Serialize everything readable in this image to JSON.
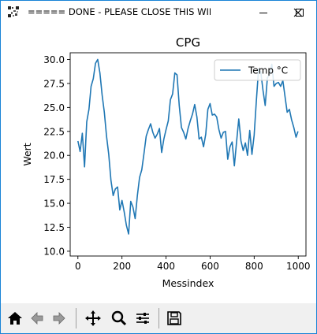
{
  "window": {
    "title": "===== DONE - PLEASE CLOSE THIS WIN...",
    "controls": [
      "minimize-icon",
      "maximize-icon",
      "close-icon"
    ]
  },
  "toolbar": {
    "buttons": [
      "home-icon",
      "back-icon",
      "forward-icon",
      "pan-icon",
      "zoom-icon",
      "subplots-icon",
      "save-icon"
    ]
  },
  "chart_data": {
    "type": "line",
    "title": "CPG",
    "xlabel": "Messindex",
    "ylabel": "Wert",
    "xlim": [
      -35,
      1035
    ],
    "ylim": [
      9.5,
      30.7
    ],
    "xticks": [
      0,
      200,
      400,
      600,
      800,
      1000
    ],
    "xtick_labels": [
      "0",
      "200",
      "400",
      "600",
      "800",
      "1000"
    ],
    "yticks": [
      10.0,
      12.5,
      15.0,
      17.5,
      20.0,
      22.5,
      25.0,
      27.5,
      30.0
    ],
    "ytick_labels": [
      "10.0",
      "12.5",
      "15.0",
      "17.5",
      "20.0",
      "22.5",
      "25.0",
      "27.5",
      "30.0"
    ],
    "legend_position": "top-right",
    "grid": false,
    "series": [
      {
        "name": "Temp °C",
        "color": "#1f77b4",
        "x": [
          0,
          10,
          20,
          30,
          40,
          50,
          60,
          70,
          80,
          90,
          100,
          110,
          120,
          130,
          140,
          150,
          160,
          170,
          180,
          190,
          200,
          210,
          220,
          230,
          240,
          250,
          260,
          270,
          280,
          290,
          300,
          310,
          320,
          330,
          340,
          350,
          360,
          370,
          380,
          390,
          400,
          410,
          420,
          430,
          440,
          450,
          460,
          470,
          480,
          490,
          500,
          510,
          520,
          530,
          540,
          550,
          560,
          570,
          580,
          590,
          600,
          610,
          620,
          630,
          640,
          650,
          660,
          670,
          680,
          690,
          700,
          710,
          720,
          730,
          740,
          750,
          760,
          770,
          780,
          790,
          800,
          810,
          820,
          830,
          840,
          850,
          860,
          870,
          880,
          890,
          900,
          910,
          920,
          930,
          940,
          950,
          960,
          970,
          980,
          990,
          999
        ],
        "y": [
          21.5,
          20.4,
          22.3,
          18.8,
          23.5,
          24.8,
          27.2,
          28.0,
          29.6,
          30.0,
          28.6,
          26.3,
          24.5,
          22.0,
          20.1,
          17.4,
          15.8,
          16.5,
          16.7,
          14.3,
          15.3,
          14.1,
          12.7,
          11.8,
          15.2,
          14.6,
          13.4,
          15.8,
          17.7,
          18.5,
          20.2,
          22.0,
          22.7,
          23.3,
          22.4,
          21.8,
          22.2,
          22.8,
          20.3,
          21.7,
          22.7,
          23.6,
          25.8,
          26.4,
          28.6,
          28.4,
          25.2,
          22.9,
          22.4,
          21.7,
          22.8,
          23.6,
          24.3,
          25.3,
          24.0,
          21.7,
          21.9,
          20.9,
          22.2,
          24.8,
          25.4,
          24.2,
          24.3,
          24.0,
          22.7,
          21.8,
          22.4,
          22.5,
          19.6,
          20.9,
          21.4,
          18.9,
          21.4,
          23.8,
          21.5,
          20.5,
          21.3,
          20.0,
          22.6,
          20.1,
          22.1,
          25.7,
          29.0,
          28.7,
          26.8,
          25.2,
          28.1,
          28.4,
          29.5,
          27.2,
          27.5,
          27.6,
          27.2,
          27.8,
          26.1,
          24.5,
          24.8,
          23.7,
          22.9,
          21.9,
          22.5
        ]
      }
    ]
  }
}
